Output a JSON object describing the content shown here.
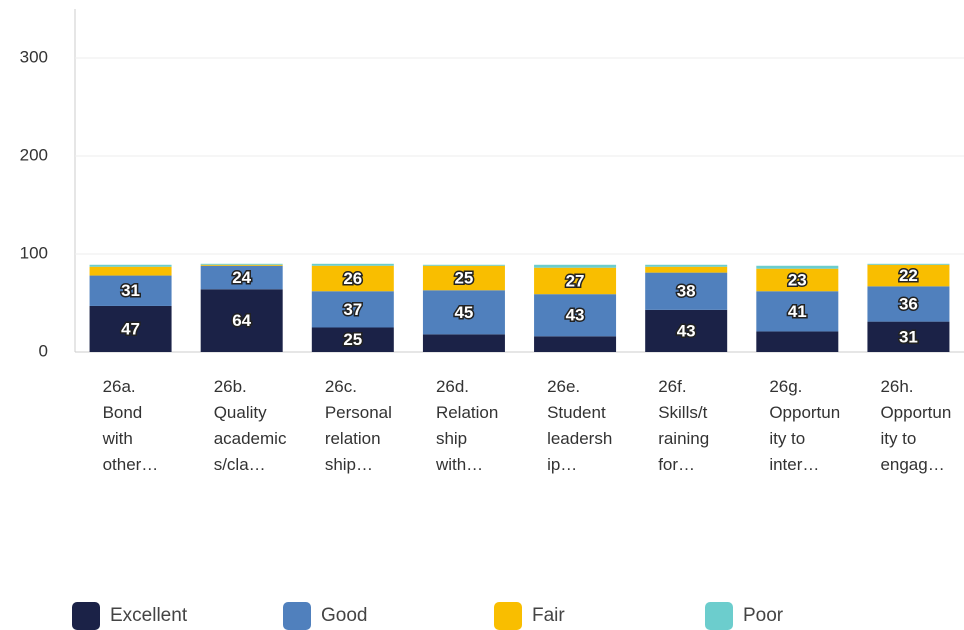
{
  "chart_data": {
    "type": "stacked_bar",
    "categories": [
      "26a.\nBond\nwith\nother…",
      "26b.\nQuality\nacademic\ns/cla…",
      "26c.\nPersonal\nrelation\nship…",
      "26d.\nRelation\nship\nwith…",
      "26e.\nStudent\nleadersh\nip…",
      "26f.\nSkills/t\nraining\nfor…",
      "26g.\nOpportun\nity to\ninter…",
      "26h.\nOpportun\nity to\nengag…"
    ],
    "series": [
      {
        "name": "Excellent",
        "color": "#1b2247",
        "values": [
          47,
          64,
          25,
          18,
          16,
          43,
          21,
          31
        ],
        "value_labels": [
          "47",
          "64",
          "25",
          null,
          null,
          "43",
          null,
          "31"
        ]
      },
      {
        "name": "Good",
        "color": "#5080bd",
        "values": [
          31,
          24,
          37,
          45,
          43,
          38,
          41,
          36
        ],
        "value_labels": [
          "31",
          "24",
          "37",
          "45",
          "43",
          "38",
          "41",
          "36"
        ]
      },
      {
        "name": "Fair",
        "color": "#f9be00",
        "values": [
          9,
          1,
          26,
          25,
          27,
          6,
          23,
          22
        ],
        "value_labels": [
          null,
          null,
          "26",
          "25",
          "27",
          null,
          "23",
          "22"
        ]
      },
      {
        "name": "Poor",
        "color": "#6ccdcd",
        "values": [
          2,
          1,
          2,
          1,
          3,
          2,
          3,
          1
        ],
        "value_labels": [
          null,
          null,
          null,
          null,
          null,
          null,
          null,
          null
        ]
      }
    ],
    "ylim": [
      0,
      350
    ],
    "yticks": [
      0,
      100,
      200,
      300
    ],
    "grid": true,
    "legend": "bottom"
  }
}
